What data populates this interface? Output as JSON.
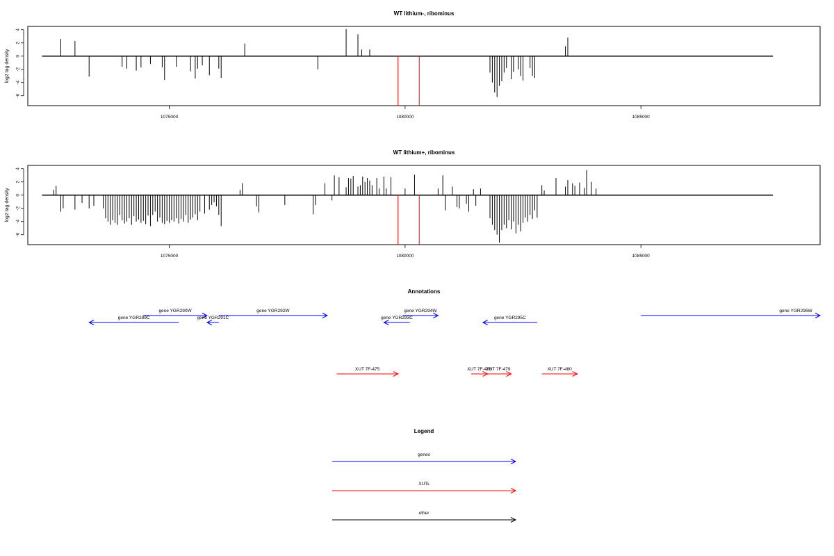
{
  "panels": [
    {
      "title": "WT lithium-, ribominus",
      "ylabel": "log2 tag density",
      "yticks": [
        "4",
        "2",
        "0",
        "-2",
        "-4",
        "-6"
      ],
      "xticks": [
        "1075000",
        "1080000",
        "1085000"
      ],
      "ylim": [
        -7.5,
        4.5
      ],
      "xlim": [
        1072000,
        1088800
      ]
    },
    {
      "title": "WT lithium+, ribominus",
      "ylabel": "log2 tag density",
      "yticks": [
        "4",
        "2",
        "0",
        "-2",
        "-4",
        "-6"
      ],
      "xticks": [
        "1075000",
        "1080000",
        "1085000"
      ],
      "ylim": [
        -7.5,
        4.5
      ],
      "xlim": [
        1072000,
        1088800
      ]
    }
  ],
  "chart_data": [
    {
      "type": "bar",
      "title": "WT lithium-, ribominus",
      "ylabel": "log2 tag density",
      "ylim": [
        -7.5,
        4.5
      ],
      "grid": false,
      "bars": [
        [
          1072700,
          2.6
        ],
        [
          1073000,
          2.3
        ],
        [
          1073300,
          -3.1
        ],
        [
          1074000,
          -1.6
        ],
        [
          1074100,
          -1.9
        ],
        [
          1074300,
          -2.2
        ],
        [
          1074400,
          -1.7
        ],
        [
          1074600,
          -1.2
        ],
        [
          1074850,
          -1.7
        ],
        [
          1074900,
          -3.6
        ],
        [
          1075150,
          -1.6
        ],
        [
          1075450,
          -2.3
        ],
        [
          1075550,
          -3.4
        ],
        [
          1075600,
          -1.9
        ],
        [
          1075700,
          -1.4
        ],
        [
          1075850,
          -2.9
        ],
        [
          1076050,
          -1.9
        ],
        [
          1076100,
          -3.3
        ],
        [
          1076600,
          1.9
        ],
        [
          1078150,
          -2.0
        ],
        [
          1078750,
          4.1
        ],
        [
          1079000,
          3.3
        ],
        [
          1079080,
          1.0
        ],
        [
          1079250,
          1.0
        ],
        [
          1081800,
          -2.5
        ],
        [
          1081850,
          -4.0
        ],
        [
          1081900,
          -5.5
        ],
        [
          1081950,
          -6.2
        ],
        [
          1082000,
          -4.5
        ],
        [
          1082050,
          -3.8
        ],
        [
          1082100,
          -2.5
        ],
        [
          1082150,
          -1.8
        ],
        [
          1082250,
          -3.5
        ],
        [
          1082300,
          -2.4
        ],
        [
          1082400,
          -2.0
        ],
        [
          1082450,
          -3.0
        ],
        [
          1082500,
          -3.7
        ],
        [
          1082650,
          -1.8
        ],
        [
          1082700,
          -3.0
        ],
        [
          1082750,
          -3.3
        ],
        [
          1083400,
          1.5
        ],
        [
          1083450,
          2.8
        ]
      ],
      "highlight_lines": [
        [
          1079850,
          -7.5
        ],
        [
          1080300,
          -7.5
        ]
      ]
    },
    {
      "type": "bar",
      "title": "WT lithium+, ribominus",
      "ylabel": "log2 tag density",
      "ylim": [
        -7.5,
        4.5
      ],
      "grid": false,
      "bars": [
        [
          1072550,
          0.8
        ],
        [
          1072600,
          1.4
        ],
        [
          1072700,
          -2.5
        ],
        [
          1072750,
          -2.0
        ],
        [
          1073000,
          -2.2
        ],
        [
          1073150,
          -1.2
        ],
        [
          1073300,
          -2.0
        ],
        [
          1073400,
          -1.6
        ],
        [
          1073600,
          -2.0
        ],
        [
          1073650,
          -3.5
        ],
        [
          1073700,
          -4.0
        ],
        [
          1073750,
          -4.5
        ],
        [
          1073800,
          -3.8
        ],
        [
          1073850,
          -4.2
        ],
        [
          1073900,
          -4.5
        ],
        [
          1073950,
          -3.0
        ],
        [
          1074000,
          -3.8
        ],
        [
          1074050,
          -4.3
        ],
        [
          1074100,
          -4.0
        ],
        [
          1074150,
          -3.5
        ],
        [
          1074200,
          -4.5
        ],
        [
          1074250,
          -3.2
        ],
        [
          1074300,
          -4.0
        ],
        [
          1074350,
          -3.7
        ],
        [
          1074400,
          -4.2
        ],
        [
          1074450,
          -3.9
        ],
        [
          1074500,
          -4.4
        ],
        [
          1074550,
          -3.1
        ],
        [
          1074600,
          -4.7
        ],
        [
          1074650,
          -3.0
        ],
        [
          1074700,
          -2.5
        ],
        [
          1074750,
          -4.0
        ],
        [
          1074800,
          -3.4
        ],
        [
          1074850,
          -4.2
        ],
        [
          1074900,
          -4.4
        ],
        [
          1074950,
          -3.9
        ],
        [
          1075000,
          -4.2
        ],
        [
          1075050,
          -3.8
        ],
        [
          1075100,
          -4.0
        ],
        [
          1075150,
          -3.5
        ],
        [
          1075200,
          -4.3
        ],
        [
          1075250,
          -3.6
        ],
        [
          1075300,
          -4.0
        ],
        [
          1075350,
          -3.0
        ],
        [
          1075400,
          -4.2
        ],
        [
          1075450,
          -3.7
        ],
        [
          1075500,
          -3.4
        ],
        [
          1075550,
          -2.9
        ],
        [
          1075600,
          -3.8
        ],
        [
          1075650,
          -2.5
        ],
        [
          1075750,
          -2.8
        ],
        [
          1075850,
          -2.2
        ],
        [
          1075900,
          -1.5
        ],
        [
          1075950,
          -1.1
        ],
        [
          1076000,
          -1.7
        ],
        [
          1076050,
          -3.0
        ],
        [
          1076100,
          -4.7
        ],
        [
          1076500,
          0.8
        ],
        [
          1076550,
          1.8
        ],
        [
          1076850,
          -1.7
        ],
        [
          1076900,
          -2.6
        ],
        [
          1077450,
          -1.5
        ],
        [
          1078050,
          -2.9
        ],
        [
          1078100,
          -1.5
        ],
        [
          1078300,
          1.8
        ],
        [
          1078450,
          -0.8
        ],
        [
          1078500,
          3.0
        ],
        [
          1078600,
          2.7
        ],
        [
          1078750,
          1.2
        ],
        [
          1078800,
          2.6
        ],
        [
          1078850,
          2.5
        ],
        [
          1078900,
          2.9
        ],
        [
          1079000,
          1.3
        ],
        [
          1079050,
          1.5
        ],
        [
          1079100,
          2.8
        ],
        [
          1079150,
          2.0
        ],
        [
          1079200,
          2.6
        ],
        [
          1079250,
          2.2
        ],
        [
          1079300,
          1.5
        ],
        [
          1079400,
          2.6
        ],
        [
          1079450,
          1.0
        ],
        [
          1079550,
          2.8
        ],
        [
          1079600,
          1.0
        ],
        [
          1079700,
          2.7
        ],
        [
          1080000,
          1.0
        ],
        [
          1080200,
          3.1
        ],
        [
          1080700,
          1.0
        ],
        [
          1080800,
          3.0
        ],
        [
          1080850,
          -2.3
        ],
        [
          1081000,
          1.3
        ],
        [
          1081100,
          -1.8
        ],
        [
          1081150,
          -2.0
        ],
        [
          1081300,
          -1.3
        ],
        [
          1081350,
          -2.5
        ],
        [
          1081450,
          0.9
        ],
        [
          1081500,
          -1.6
        ],
        [
          1081600,
          1.0
        ],
        [
          1081800,
          -3.5
        ],
        [
          1081850,
          -4.5
        ],
        [
          1081900,
          -5.3
        ],
        [
          1081950,
          -6.0
        ],
        [
          1082000,
          -7.2
        ],
        [
          1082050,
          -5.3
        ],
        [
          1082100,
          -4.5
        ],
        [
          1082150,
          -5.0
        ],
        [
          1082200,
          -3.8
        ],
        [
          1082250,
          -5.2
        ],
        [
          1082300,
          -4.0
        ],
        [
          1082350,
          -5.8
        ],
        [
          1082400,
          -4.5
        ],
        [
          1082450,
          -5.5
        ],
        [
          1082500,
          -4.2
        ],
        [
          1082550,
          -3.4
        ],
        [
          1082600,
          -4.0
        ],
        [
          1082650,
          -3.0
        ],
        [
          1082700,
          -3.6
        ],
        [
          1082750,
          -2.3
        ],
        [
          1082800,
          -3.4
        ],
        [
          1082900,
          1.5
        ],
        [
          1082950,
          0.7
        ],
        [
          1083200,
          2.6
        ],
        [
          1083400,
          1.3
        ],
        [
          1083450,
          2.3
        ],
        [
          1083550,
          1.8
        ],
        [
          1083600,
          1.4
        ],
        [
          1083700,
          1.9
        ],
        [
          1083800,
          1.1
        ],
        [
          1083850,
          3.8
        ],
        [
          1083950,
          2.0
        ],
        [
          1084050,
          1.0
        ]
      ],
      "highlight_lines": [
        [
          1079850,
          -7.5
        ],
        [
          1080300,
          -7.5
        ]
      ]
    },
    {
      "type": "annotation-track",
      "title": "Annotations",
      "genes": [
        {
          "label": "gene YGR289C",
          "start": 1073300,
          "end": 1075200,
          "strand": "-"
        },
        {
          "label": "gene YGR290W",
          "start": 1074450,
          "end": 1075800,
          "strand": "+"
        },
        {
          "label": "gene YGR291C",
          "start": 1075800,
          "end": 1076050,
          "strand": "-"
        },
        {
          "label": "gene YGR292W",
          "start": 1076050,
          "end": 1078350,
          "strand": "+"
        },
        {
          "label": "gene YGR293C",
          "start": 1079550,
          "end": 1080100,
          "strand": "-"
        },
        {
          "label": "gene YGR294W",
          "start": 1079950,
          "end": 1080700,
          "strand": "+"
        },
        {
          "label": "gene YGR295C",
          "start": 1081650,
          "end": 1082800,
          "strand": "-"
        },
        {
          "label": "gene YGR296W",
          "start": 1085000,
          "end": 1088800,
          "strand": "+"
        }
      ],
      "xuts": [
        {
          "label": "XUT 7F-475",
          "start": 1078550,
          "end": 1079850,
          "strand": "+"
        },
        {
          "label": "XUT 7F-478",
          "start": 1081400,
          "end": 1081750,
          "strand": "+"
        },
        {
          "label": "XUT 7F-479",
          "start": 1081700,
          "end": 1082250,
          "strand": "+"
        },
        {
          "label": "XUT 7F-480",
          "start": 1082900,
          "end": 1083650,
          "strand": "+"
        }
      ]
    }
  ],
  "annotations_title": "Annotations",
  "legend": {
    "title": "Legend",
    "items": [
      {
        "label": "genes",
        "color": "#0000ff"
      },
      {
        "label": "XUTs",
        "color": "#ff0000"
      },
      {
        "label": "other",
        "color": "#000000"
      }
    ]
  },
  "colors": {
    "genes": "#0000ff",
    "xuts": "#ff0000",
    "other": "#000000",
    "highlight": "#ff0000"
  }
}
